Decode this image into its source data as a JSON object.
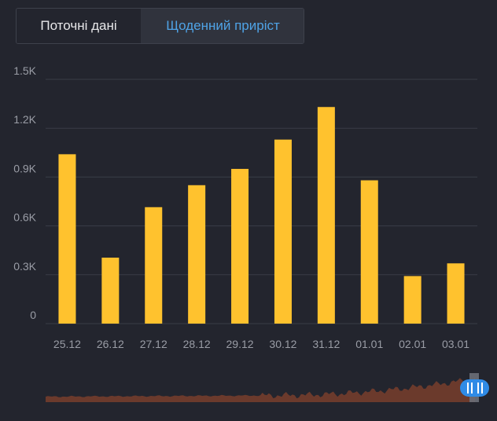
{
  "tabs": [
    {
      "label": "Поточні дані"
    },
    {
      "label": "Щоденний приріст"
    }
  ],
  "active_tab": 1,
  "colors": {
    "background": "#23252e",
    "bar": "#ffc22e",
    "grid": "#3a3d47",
    "axis_text": "#9a9da6",
    "overview_area": "#6b3a2c",
    "scroll_handle": "#2f8be6"
  },
  "chart_data": {
    "type": "bar",
    "categories": [
      "25.12",
      "26.12",
      "27.12",
      "28.12",
      "29.12",
      "30.12",
      "31.12",
      "01.01",
      "02.01",
      "03.01"
    ],
    "values": [
      1040,
      405,
      715,
      850,
      950,
      1130,
      1330,
      880,
      292,
      370
    ],
    "ylim": [
      0,
      1500
    ],
    "y_ticks": [
      0,
      300,
      600,
      900,
      1200,
      1500
    ],
    "y_tick_labels": [
      "0",
      "0.3K",
      "0.6K",
      "0.9K",
      "1.2K",
      "1.5K"
    ],
    "grid": true,
    "title": "",
    "xlabel": "",
    "ylabel": ""
  },
  "overview": {
    "handle_icon": "pause-grip-icon"
  }
}
